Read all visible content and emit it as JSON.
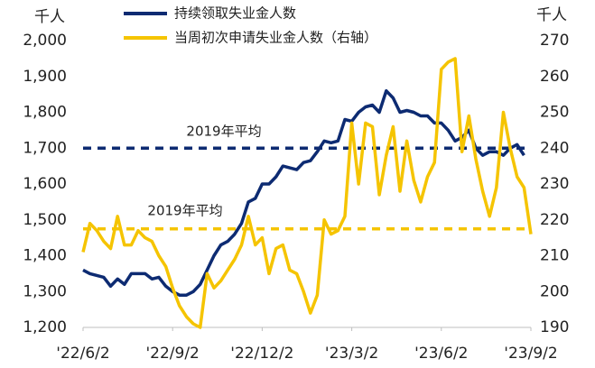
{
  "chart_data": {
    "type": "line",
    "y_label": "千人",
    "y2_label": "千人",
    "categories": [
      "'22/6/2",
      null,
      null,
      null,
      null,
      null,
      null,
      null,
      null,
      null,
      null,
      null,
      null,
      "'22/9/2",
      null,
      null,
      null,
      null,
      null,
      null,
      null,
      null,
      null,
      null,
      null,
      null,
      "'22/12/2",
      null,
      null,
      null,
      null,
      null,
      null,
      null,
      null,
      null,
      null,
      null,
      null,
      "'23/3/2",
      null,
      null,
      null,
      null,
      null,
      null,
      null,
      null,
      null,
      null,
      null,
      null,
      "'23/6/2",
      null,
      null,
      null,
      null,
      null,
      null,
      null,
      null,
      null,
      null,
      null,
      null,
      "'23/9/2"
    ],
    "series": [
      {
        "name": "持续领取失业金人数",
        "color": "#0d2b72",
        "axis": "y",
        "values": [
          1360,
          1350,
          1345,
          1340,
          1315,
          1335,
          1320,
          1350,
          1350,
          1350,
          1335,
          1340,
          1315,
          1300,
          1290,
          1290,
          1300,
          1320,
          1360,
          1400,
          1430,
          1440,
          1460,
          1490,
          1550,
          1560,
          1600,
          1600,
          1620,
          1650,
          1645,
          1640,
          1660,
          1665,
          1690,
          1720,
          1715,
          1720,
          1780,
          1775,
          1800,
          1815,
          1820,
          1800,
          1860,
          1840,
          1800,
          1805,
          1800,
          1790,
          1790,
          1770,
          1770,
          1750,
          1720,
          1730,
          1750,
          1700,
          1680,
          1690,
          1690,
          1680,
          1700,
          1710,
          1680,
          null
        ]
      },
      {
        "name": "当周初次申请失业金人数（右轴）",
        "color": "#f5c400",
        "axis": "y2",
        "values": [
          211,
          219,
          217,
          214,
          212,
          221,
          213,
          213,
          217,
          215,
          214,
          210,
          207,
          201,
          196,
          193,
          191,
          190,
          205,
          201,
          203,
          206,
          209,
          213,
          221,
          213,
          215,
          205,
          212,
          213,
          206,
          205,
          200,
          194,
          199,
          220,
          216,
          217,
          221,
          247,
          230,
          247,
          246,
          227,
          238,
          246,
          228,
          242,
          231,
          225,
          232,
          236,
          262,
          264,
          265,
          239,
          249,
          237,
          228,
          221,
          229,
          250,
          240,
          232,
          229,
          216
        ]
      }
    ],
    "reference_lines": [
      {
        "value": 1700,
        "axis": "y",
        "color": "#0d2b72",
        "label": "2019年平均"
      },
      {
        "value": 217.5,
        "axis": "y2",
        "color": "#f5c400",
        "label": "2019年平均"
      }
    ],
    "ylim": [
      1200,
      2000
    ],
    "yticks": [
      {
        "value": 1200,
        "label": "1,200"
      },
      {
        "value": 1300,
        "label": "1,300"
      },
      {
        "value": 1400,
        "label": "1,400"
      },
      {
        "value": 1500,
        "label": "1,500"
      },
      {
        "value": 1600,
        "label": "1,600"
      },
      {
        "value": 1700,
        "label": "1,700"
      },
      {
        "value": 1800,
        "label": "1,800"
      },
      {
        "value": 1900,
        "label": "1,900"
      },
      {
        "value": 2000,
        "label": "2,000"
      }
    ],
    "y2lim": [
      190,
      270
    ],
    "y2ticks": [
      190,
      200,
      210,
      220,
      230,
      240,
      250,
      260,
      270
    ],
    "grid": false,
    "legend": "top"
  }
}
